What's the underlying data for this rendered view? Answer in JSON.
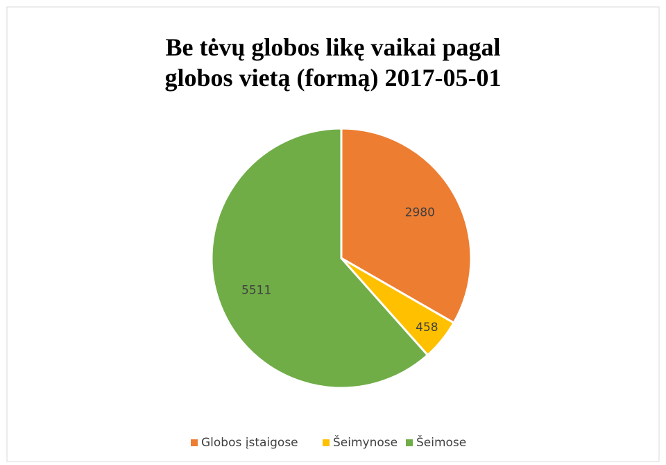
{
  "chart_data": {
    "type": "pie",
    "title": "Be tėvų globos likę vaikai pagal globos vietą (formą) 2017-05-01",
    "categories": [
      "Globos įstaigose",
      "Šeimynose",
      "Šeimose"
    ],
    "values": [
      2980,
      458,
      5511
    ],
    "colors": [
      "#ed7d31",
      "#ffc000",
      "#70ad47"
    ],
    "legend": "bottom"
  }
}
